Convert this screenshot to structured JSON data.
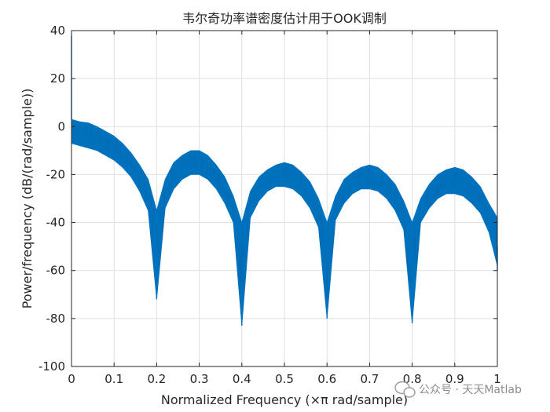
{
  "chart_data": {
    "type": "line",
    "title": "韦尔奇功率谱密度估计用于OOK调制",
    "xlabel": "Normalized Frequency  (×π rad/sample)",
    "ylabel": "Power/frequency (dB/(rad/sample))",
    "xlim": [
      0,
      1
    ],
    "ylim": [
      -100,
      40
    ],
    "xticks": [
      0,
      0.1,
      0.2,
      0.3,
      0.4,
      0.5,
      0.6,
      0.7,
      0.8,
      0.9,
      1
    ],
    "xtick_labels": [
      "0",
      "0.1",
      "0.2",
      "0.3",
      "0.4",
      "0.5",
      "0.6",
      "0.7",
      "0.8",
      "0.9",
      "1"
    ],
    "yticks": [
      -100,
      -80,
      -60,
      -40,
      -20,
      0,
      20,
      40
    ],
    "ytick_labels": [
      "-100",
      "-80",
      "-60",
      "-40",
      "-20",
      "0",
      "20",
      "40"
    ],
    "grid": true,
    "series": [
      {
        "color": "#0072BD",
        "envelope": {
          "x": [
            0.0,
            0.02,
            0.04,
            0.06,
            0.08,
            0.1,
            0.12,
            0.14,
            0.16,
            0.18,
            0.2,
            0.22,
            0.24,
            0.26,
            0.28,
            0.3,
            0.32,
            0.34,
            0.36,
            0.38,
            0.4,
            0.42,
            0.44,
            0.46,
            0.48,
            0.5,
            0.52,
            0.54,
            0.56,
            0.58,
            0.6,
            0.62,
            0.64,
            0.66,
            0.68,
            0.7,
            0.72,
            0.74,
            0.76,
            0.78,
            0.8,
            0.82,
            0.84,
            0.86,
            0.88,
            0.9,
            0.92,
            0.94,
            0.96,
            0.98,
            1.0
          ],
          "upper": [
            3,
            2,
            1.5,
            0,
            -2,
            -4,
            -7,
            -11,
            -16,
            -22,
            -35,
            -22,
            -15,
            -12,
            -10,
            -10,
            -12,
            -16,
            -21,
            -29,
            -40,
            -27,
            -21,
            -18,
            -16,
            -15,
            -16,
            -19,
            -23,
            -30,
            -40,
            -29,
            -22,
            -19,
            -17,
            -16,
            -17,
            -20,
            -24,
            -31,
            -40,
            -30,
            -24,
            -20,
            -18,
            -17,
            -18,
            -21,
            -25,
            -32,
            -38
          ],
          "lower": [
            -7,
            -8,
            -9,
            -10,
            -12,
            -14,
            -17,
            -21,
            -27,
            -35,
            -72,
            -34,
            -26,
            -22,
            -20,
            -20,
            -22,
            -26,
            -32,
            -40,
            -83,
            -38,
            -31,
            -27,
            -25,
            -25,
            -26,
            -29,
            -34,
            -42,
            -80,
            -39,
            -32,
            -28,
            -26,
            -26,
            -27,
            -30,
            -35,
            -43,
            -82,
            -40,
            -34,
            -30,
            -28,
            -28,
            -29,
            -32,
            -36,
            -44,
            -58
          ]
        },
        "spikes": [
          {
            "x": 0.0,
            "y": 38
          },
          {
            "x": 0.2,
            "y": -72
          },
          {
            "x": 0.4,
            "y": -83
          },
          {
            "x": 0.6,
            "y": -80
          },
          {
            "x": 0.8,
            "y": -82
          },
          {
            "x": 1.0,
            "y": -60
          }
        ]
      }
    ]
  },
  "watermark": {
    "text": "公众号 · 天天Matlab",
    "icon": "wechat-icon"
  }
}
